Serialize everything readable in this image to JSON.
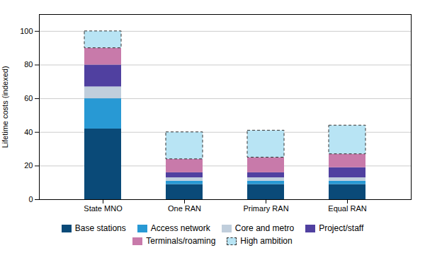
{
  "chart_data": {
    "type": "bar",
    "ylabel": "Lifetime costs (indexed)",
    "categories": [
      "State MNO",
      "One RAN",
      "Primary RAN",
      "Equal RAN"
    ],
    "series": [
      {
        "name": "Base stations",
        "color": "#0a4a78",
        "values": [
          42,
          9,
          9,
          9
        ]
      },
      {
        "name": "Access network",
        "color": "#2899d4",
        "values": [
          18,
          2,
          2,
          2
        ]
      },
      {
        "name": "Core and metro",
        "color": "#c0cedc",
        "values": [
          7,
          2,
          2,
          2
        ]
      },
      {
        "name": "Project/staff",
        "color": "#5040a0",
        "values": [
          13,
          3,
          3,
          6
        ]
      },
      {
        "name": "Terminals/roaming",
        "color": "#c87aaa",
        "values": [
          10,
          8,
          9,
          8
        ]
      },
      {
        "name": "High ambition",
        "color": "#b8e4f4",
        "values": [
          10,
          16,
          16,
          17
        ],
        "line_style": "dashed"
      }
    ],
    "stacked": true,
    "ylim": [
      0,
      110
    ],
    "yticks": [
      0,
      20,
      40,
      60,
      80,
      100
    ],
    "grid": true,
    "legend": "bottom"
  }
}
